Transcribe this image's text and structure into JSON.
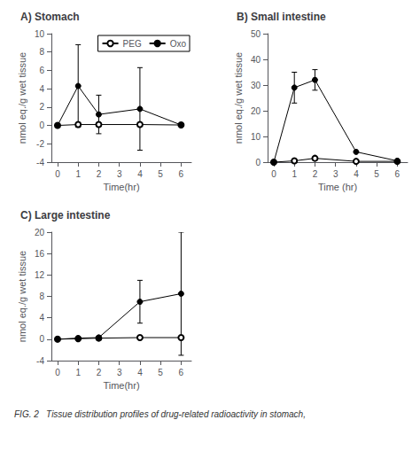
{
  "caption": "FIG. 2   Tissue distribution profiles of drug-related radioactivity in stomach,",
  "chart_data": [
    {
      "type": "line",
      "title": "A) Stomach",
      "xlabel": "Time(hr)",
      "ylabel": "nmol eq./g wet tissue",
      "x": [
        0,
        1,
        2,
        4,
        6
      ],
      "xlim": [
        -0.3,
        6.5
      ],
      "xticks": [
        0,
        1,
        2,
        3,
        4,
        5,
        6
      ],
      "ylim": [
        -4,
        10
      ],
      "yticks": [
        -4,
        -2,
        0,
        2,
        4,
        6,
        8,
        10
      ],
      "grid": false,
      "legend": "upper right",
      "series": [
        {
          "name": "PEG",
          "color": "#000000",
          "marker": "emptyCircle",
          "values": [
            0,
            0.1,
            0.1,
            0.1,
            0.05
          ],
          "errors": [
            0,
            0,
            0,
            0,
            0
          ]
        },
        {
          "name": "Oxo",
          "color": "#000000",
          "marker": "circle",
          "values": [
            0,
            4.3,
            1.2,
            1.8,
            0.05
          ],
          "errors": [
            0,
            4.5,
            2.1,
            4.5,
            0
          ]
        }
      ]
    },
    {
      "type": "line",
      "title": "B) Small intestine",
      "xlabel": "Time (hr)",
      "ylabel": "nmol eq./g wet tissue",
      "x": [
        0,
        1,
        2,
        4,
        6
      ],
      "xlim": [
        -0.3,
        6.5
      ],
      "xticks": [
        0,
        1,
        2,
        3,
        4,
        5,
        6
      ],
      "ylim": [
        0,
        50
      ],
      "yticks": [
        0,
        10,
        20,
        30,
        40,
        50
      ],
      "grid": false,
      "series": [
        {
          "name": "PEG",
          "color": "#000000",
          "marker": "emptyCircle",
          "values": [
            0,
            0.5,
            1.5,
            0.3,
            0.3
          ],
          "errors": [
            0,
            0,
            0,
            0,
            0
          ]
        },
        {
          "name": "Oxo",
          "color": "#000000",
          "marker": "circle",
          "values": [
            0,
            29,
            32,
            4,
            0.5
          ],
          "errors": [
            0,
            6,
            4,
            0,
            0
          ]
        }
      ]
    },
    {
      "type": "line",
      "title": "C) Large intestine",
      "xlabel": "Time(hr)",
      "ylabel": "nmol eq./g wet tissue",
      "x": [
        0,
        1,
        2,
        4,
        6
      ],
      "xlim": [
        -0.3,
        6.5
      ],
      "xticks": [
        0,
        1,
        2,
        3,
        4,
        5,
        6
      ],
      "ylim": [
        -4,
        20
      ],
      "yticks": [
        -4,
        0,
        4,
        8,
        12,
        16,
        20
      ],
      "grid": false,
      "series": [
        {
          "name": "PEG",
          "color": "#000000",
          "marker": "emptyCircle",
          "values": [
            0,
            0.1,
            0.2,
            0.3,
            0.3
          ],
          "errors": [
            0,
            0,
            0,
            0,
            0
          ]
        },
        {
          "name": "Oxo",
          "color": "#000000",
          "marker": "circle",
          "values": [
            0,
            0.2,
            0.3,
            7.0,
            8.5
          ],
          "errors": [
            0,
            0,
            0,
            4.0,
            11.5
          ]
        }
      ]
    }
  ]
}
